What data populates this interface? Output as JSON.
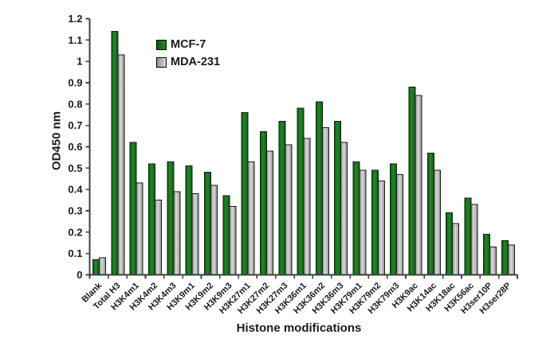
{
  "chart_data": {
    "type": "bar",
    "title": "",
    "xlabel": "Histone modifications",
    "ylabel": "OD450 nm",
    "ylim": [
      0,
      1.2
    ],
    "ytick_step": 0.1,
    "ytick_labels": [
      "0",
      "0.1",
      "0.2",
      "0.3",
      "0.4",
      "0.5",
      "0.6",
      "0.7",
      "0.8",
      "0.9",
      "1",
      "1.1",
      "1.2"
    ],
    "grid": false,
    "legend_position": "inside-upper-left",
    "axis_color": "#3f3f3f",
    "text_color": "#1a1a1a",
    "bar_outline_color": "#1a1a1a",
    "categories": [
      "Blank",
      "Total H3",
      "H3K4m1",
      "H3K4m2",
      "H3K4m3",
      "H3K9m1",
      "H3K9m2",
      "H3K9m3",
      "H3K27m1",
      "H3K27m2",
      "H3K27m3",
      "H3K36m1",
      "H3K36m2",
      "H3K36m3",
      "H3K79m1",
      "H3K79m2",
      "H3K79m3",
      "H3K9ac",
      "H3K14ac",
      "H3K18ac",
      "H3K56ac",
      "H3ser10P",
      "H3ser28P"
    ],
    "series": [
      {
        "name": "MCF-7",
        "color": "#1e8a22",
        "color_dark": "#0e5c12",
        "values": [
          0.07,
          1.14,
          0.62,
          0.52,
          0.53,
          0.51,
          0.48,
          0.37,
          0.76,
          0.67,
          0.72,
          0.78,
          0.81,
          0.72,
          0.53,
          0.49,
          0.52,
          0.88,
          0.57,
          0.29,
          0.36,
          0.19,
          0.16
        ]
      },
      {
        "name": "MDA-231",
        "color": "#dadada",
        "color_dark": "#8f8f8f",
        "values": [
          0.08,
          1.03,
          0.43,
          0.35,
          0.39,
          0.38,
          0.42,
          0.32,
          0.53,
          0.58,
          0.61,
          0.64,
          0.69,
          0.62,
          0.49,
          0.44,
          0.47,
          0.84,
          0.49,
          0.24,
          0.33,
          0.13,
          0.14
        ]
      }
    ]
  }
}
